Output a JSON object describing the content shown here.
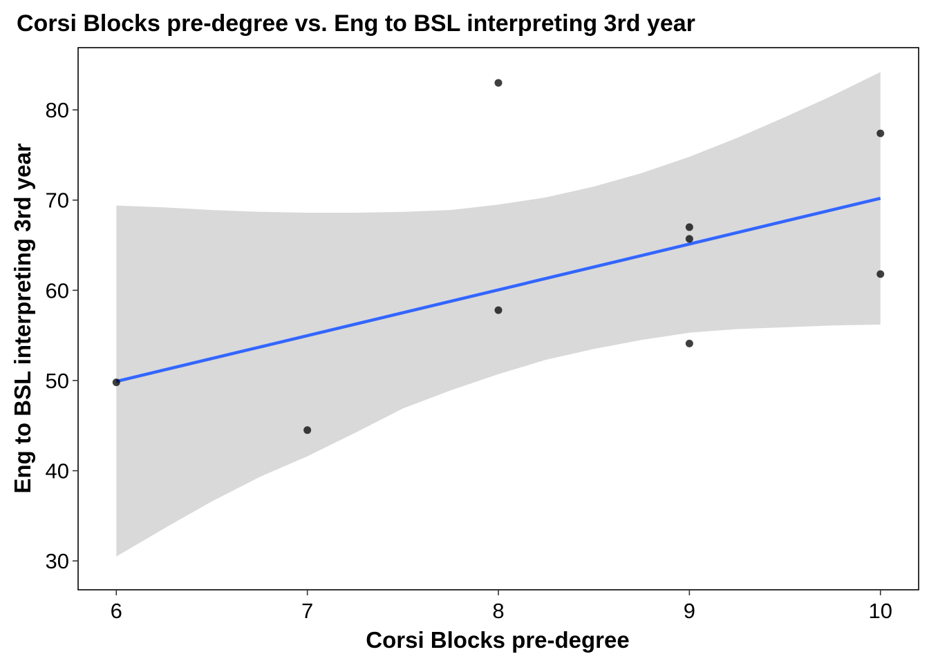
{
  "chart_data": {
    "type": "scatter",
    "title": "Corsi Blocks pre-degree vs. Eng to BSL interpreting 3rd year",
    "xlabel": "Corsi Blocks pre-degree",
    "ylabel": "Eng to BSL interpreting 3rd year",
    "xlim": [
      5.8,
      10.2
    ],
    "ylim": [
      26.8,
      86.9
    ],
    "x_ticks": [
      6,
      7,
      8,
      9,
      10
    ],
    "y_ticks": [
      30,
      40,
      50,
      60,
      70,
      80
    ],
    "x_tick_labels": [
      "6",
      "7",
      "8",
      "9",
      "10"
    ],
    "y_tick_labels": [
      "30",
      "40",
      "50",
      "60",
      "70",
      "80"
    ],
    "grid": false,
    "points": [
      {
        "x": 6,
        "y": 49.8
      },
      {
        "x": 7,
        "y": 44.5
      },
      {
        "x": 8,
        "y": 83.0
      },
      {
        "x": 8,
        "y": 57.8
      },
      {
        "x": 9,
        "y": 67.0
      },
      {
        "x": 9,
        "y": 65.7
      },
      {
        "x": 9,
        "y": 54.1
      },
      {
        "x": 10,
        "y": 77.4
      },
      {
        "x": 10,
        "y": 61.8
      }
    ],
    "regression_line": {
      "method": "linear",
      "x": [
        6,
        10
      ],
      "y": [
        49.9,
        70.2
      ]
    },
    "confidence_band": {
      "x": [
        6,
        6.25,
        6.5,
        6.75,
        7,
        7.25,
        7.5,
        7.75,
        8,
        8.25,
        8.5,
        8.75,
        9,
        9.25,
        9.5,
        9.75,
        10
      ],
      "upper": [
        69.4,
        69.2,
        68.9,
        68.7,
        68.6,
        68.6,
        68.7,
        68.9,
        69.5,
        70.3,
        71.5,
        73.0,
        74.8,
        76.9,
        79.2,
        81.6,
        84.2
      ],
      "lower": [
        30.5,
        33.6,
        36.6,
        39.3,
        41.6,
        44.2,
        46.9,
        48.9,
        50.7,
        52.3,
        53.5,
        54.5,
        55.3,
        55.7,
        55.9,
        56.1,
        56.2
      ]
    },
    "colors": {
      "line": "#3366FF",
      "band": "#D9D9D9",
      "points": "#000000",
      "panel_border": "#000000"
    }
  }
}
